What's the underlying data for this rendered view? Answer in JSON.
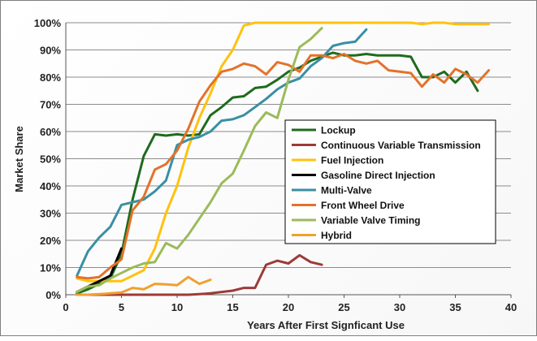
{
  "chart_data": {
    "type": "line",
    "xlabel": "Years After First Signficant Use",
    "ylabel": "Market Share",
    "xlim": [
      0,
      40
    ],
    "ylim": [
      0,
      100
    ],
    "xticks": [
      "0",
      "5",
      "10",
      "15",
      "20",
      "25",
      "30",
      "35",
      "40"
    ],
    "yticks": [
      "0%",
      "10%",
      "20%",
      "30%",
      "40%",
      "50%",
      "60%",
      "70%",
      "80%",
      "90%",
      "100%"
    ],
    "grid": true,
    "legend_position": "center-right",
    "series": [
      {
        "name": "Lockup",
        "color": "#1e6b1e",
        "points": [
          [
            1,
            0.5
          ],
          [
            2,
            2
          ],
          [
            3,
            4
          ],
          [
            4,
            6
          ],
          [
            5,
            15
          ],
          [
            6,
            35
          ],
          [
            7,
            51
          ],
          [
            8,
            59
          ],
          [
            9,
            58.5
          ],
          [
            10,
            59
          ],
          [
            11,
            58.5
          ],
          [
            12,
            59
          ],
          [
            13,
            66
          ],
          [
            14,
            69
          ],
          [
            15,
            72.5
          ],
          [
            16,
            73
          ],
          [
            17,
            76
          ],
          [
            18,
            76.5
          ],
          [
            19,
            79
          ],
          [
            20,
            82
          ],
          [
            21,
            83.5
          ],
          [
            22,
            86
          ],
          [
            23,
            87.5
          ],
          [
            24,
            89
          ],
          [
            25,
            88
          ],
          [
            26,
            88
          ],
          [
            27,
            88.5
          ],
          [
            28,
            88
          ],
          [
            29,
            88
          ],
          [
            30,
            88
          ],
          [
            31,
            87.5
          ],
          [
            32,
            80
          ],
          [
            33,
            80
          ],
          [
            34,
            82
          ],
          [
            35,
            78
          ],
          [
            36,
            82
          ],
          [
            37,
            75
          ]
        ]
      },
      {
        "name": "Continuous Variable Transmission",
        "color": "#9e3a38",
        "points": [
          [
            1,
            0
          ],
          [
            2,
            0
          ],
          [
            3,
            0
          ],
          [
            4,
            0
          ],
          [
            5,
            0
          ],
          [
            6,
            0
          ],
          [
            7,
            0
          ],
          [
            8,
            0
          ],
          [
            9,
            0
          ],
          [
            10,
            0
          ],
          [
            11,
            0
          ],
          [
            12,
            0.2
          ],
          [
            13,
            0.5
          ],
          [
            14,
            1
          ],
          [
            15,
            1.5
          ],
          [
            16,
            2.5
          ],
          [
            17,
            2.5
          ],
          [
            18,
            11
          ],
          [
            19,
            12.5
          ],
          [
            20,
            11.5
          ],
          [
            21,
            14.5
          ],
          [
            22,
            12
          ],
          [
            23,
            11
          ]
        ]
      },
      {
        "name": "Fuel Injection",
        "color": "#ffc20e",
        "points": [
          [
            1,
            6
          ],
          [
            2,
            5
          ],
          [
            3,
            5
          ],
          [
            4,
            5
          ],
          [
            5,
            5
          ],
          [
            6,
            7
          ],
          [
            7,
            9
          ],
          [
            8,
            17
          ],
          [
            9,
            30
          ],
          [
            10,
            40
          ],
          [
            11,
            54
          ],
          [
            12,
            65
          ],
          [
            13,
            74
          ],
          [
            14,
            84
          ],
          [
            15,
            90
          ],
          [
            16,
            99
          ],
          [
            17,
            100
          ],
          [
            18,
            100
          ],
          [
            19,
            100
          ],
          [
            20,
            100
          ],
          [
            21,
            100
          ],
          [
            22,
            100
          ],
          [
            23,
            100
          ],
          [
            24,
            100
          ],
          [
            25,
            100
          ],
          [
            26,
            100
          ],
          [
            27,
            100
          ],
          [
            28,
            100
          ],
          [
            29,
            100
          ],
          [
            30,
            100
          ],
          [
            31,
            100
          ],
          [
            32,
            99.5
          ],
          [
            33,
            100
          ],
          [
            34,
            100
          ],
          [
            35,
            99.5
          ],
          [
            36,
            99.5
          ],
          [
            37,
            99.5
          ],
          [
            38,
            99.5
          ]
        ]
      },
      {
        "name": "Gasoline Direct Injection",
        "color": "#000000",
        "points": [
          [
            1,
            1
          ],
          [
            2,
            3
          ],
          [
            3,
            5
          ],
          [
            4,
            7
          ],
          [
            5,
            17
          ]
        ]
      },
      {
        "name": "Multi-Valve",
        "color": "#3a8fa5",
        "points": [
          [
            1,
            7
          ],
          [
            2,
            16
          ],
          [
            3,
            21
          ],
          [
            4,
            25
          ],
          [
            5,
            33
          ],
          [
            6,
            34
          ],
          [
            7,
            35
          ],
          [
            8,
            38
          ],
          [
            9,
            42
          ],
          [
            10,
            55
          ],
          [
            11,
            57
          ],
          [
            12,
            58
          ],
          [
            13,
            60
          ],
          [
            14,
            64
          ],
          [
            15,
            64.5
          ],
          [
            16,
            66
          ],
          [
            17,
            69
          ],
          [
            18,
            72
          ],
          [
            19,
            75.5
          ],
          [
            20,
            78
          ],
          [
            21,
            79.5
          ],
          [
            22,
            84
          ],
          [
            23,
            87
          ],
          [
            24,
            91.5
          ],
          [
            25,
            92.5
          ],
          [
            26,
            93
          ],
          [
            27,
            97.5
          ]
        ]
      },
      {
        "name": "Front Wheel Drive",
        "color": "#e3722a",
        "points": [
          [
            1,
            6.5
          ],
          [
            2,
            6
          ],
          [
            3,
            6.5
          ],
          [
            4,
            10
          ],
          [
            5,
            13
          ],
          [
            6,
            31
          ],
          [
            7,
            36
          ],
          [
            8,
            46
          ],
          [
            9,
            48
          ],
          [
            10,
            53
          ],
          [
            11,
            61
          ],
          [
            12,
            71
          ],
          [
            13,
            77
          ],
          [
            14,
            82
          ],
          [
            15,
            83
          ],
          [
            16,
            85
          ],
          [
            17,
            84
          ],
          [
            18,
            81
          ],
          [
            19,
            85.5
          ],
          [
            20,
            84.5
          ],
          [
            21,
            82
          ],
          [
            22,
            88
          ],
          [
            23,
            88
          ],
          [
            24,
            87
          ],
          [
            25,
            88.5
          ],
          [
            26,
            86
          ],
          [
            27,
            85
          ],
          [
            28,
            86
          ],
          [
            29,
            82.5
          ],
          [
            30,
            82
          ],
          [
            31,
            81.5
          ],
          [
            32,
            76.5
          ],
          [
            33,
            81
          ],
          [
            34,
            78
          ],
          [
            35,
            83
          ],
          [
            36,
            81
          ],
          [
            37,
            78
          ],
          [
            38,
            82.5
          ]
        ]
      },
      {
        "name": "Variable Valve Timing",
        "color": "#9bbb59",
        "points": [
          [
            1,
            1
          ],
          [
            2,
            3
          ],
          [
            3,
            3.5
          ],
          [
            4,
            6
          ],
          [
            5,
            8
          ],
          [
            6,
            10
          ],
          [
            7,
            11.5
          ],
          [
            8,
            12
          ],
          [
            9,
            19
          ],
          [
            10,
            17
          ],
          [
            11,
            22
          ],
          [
            12,
            28
          ],
          [
            13,
            34
          ],
          [
            14,
            41
          ],
          [
            15,
            44.5
          ],
          [
            16,
            53
          ],
          [
            17,
            62
          ],
          [
            18,
            67
          ],
          [
            19,
            65
          ],
          [
            20,
            79
          ],
          [
            21,
            91
          ],
          [
            22,
            94
          ],
          [
            23,
            98
          ]
        ]
      },
      {
        "name": "Hybrid",
        "color": "#f0a030",
        "points": [
          [
            1,
            0
          ],
          [
            2,
            0
          ],
          [
            3,
            0.2
          ],
          [
            4,
            0.5
          ],
          [
            5,
            0.8
          ],
          [
            6,
            2.5
          ],
          [
            7,
            2
          ],
          [
            8,
            4
          ],
          [
            9,
            3.8
          ],
          [
            10,
            3.5
          ],
          [
            11,
            6.5
          ],
          [
            12,
            4
          ],
          [
            13,
            5.5
          ]
        ]
      }
    ]
  }
}
